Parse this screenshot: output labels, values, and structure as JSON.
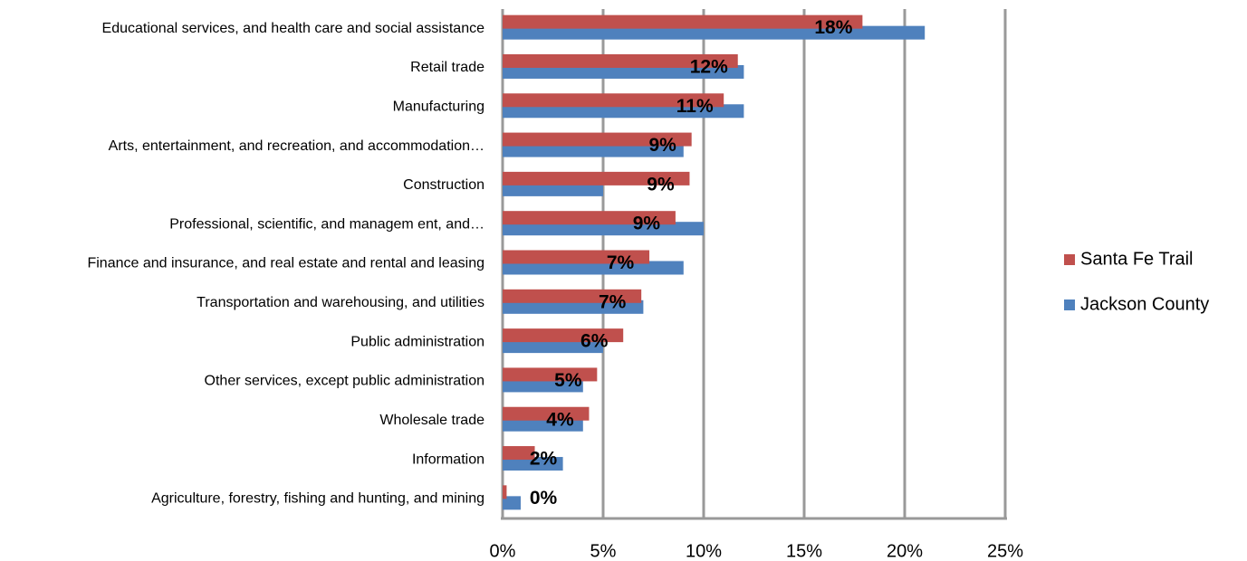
{
  "chart_data": {
    "type": "bar",
    "orientation": "horizontal",
    "categories": [
      "Educational services, and health care and social assistance",
      "Retail trade",
      "Manufacturing",
      "Arts, entertainment, and recreation, and accommodation…",
      "Construction",
      "Professional, scientific, and managem ent, and…",
      "Finance and insurance, and real estate and rental and leasing",
      "Transportation and warehousing, and utilities",
      "Public administration",
      "Other services, except public administration",
      "Wholesale trade",
      "Information",
      "Agriculture, forestry, fishing and hunting, and mining"
    ],
    "series": [
      {
        "name": "Santa Fe Trail",
        "color": "#c0504d",
        "values": [
          17.9,
          11.7,
          11.0,
          9.4,
          9.3,
          8.6,
          7.3,
          6.9,
          6.0,
          4.7,
          4.3,
          1.6,
          0.2
        ],
        "value_labels": [
          "18%",
          "12%",
          "11%",
          "9%",
          "9%",
          "9%",
          "7%",
          "7%",
          "6%",
          "5%",
          "4%",
          "2%",
          "0%"
        ]
      },
      {
        "name": "Jackson County",
        "color": "#4f81bd",
        "values": [
          21.0,
          12.0,
          12.0,
          9.0,
          5.0,
          10.0,
          9.0,
          7.0,
          5.0,
          4.0,
          4.0,
          3.0,
          0.9
        ]
      }
    ],
    "xlim": [
      0,
      25
    ],
    "xticks": [
      {
        "value": 0,
        "label": "0%"
      },
      {
        "value": 5,
        "label": "5%"
      },
      {
        "value": 10,
        "label": "10%"
      },
      {
        "value": 15,
        "label": "15%"
      },
      {
        "value": 20,
        "label": "20%"
      },
      {
        "value": 25,
        "label": "25%"
      }
    ],
    "grid": true,
    "legend": "right"
  }
}
